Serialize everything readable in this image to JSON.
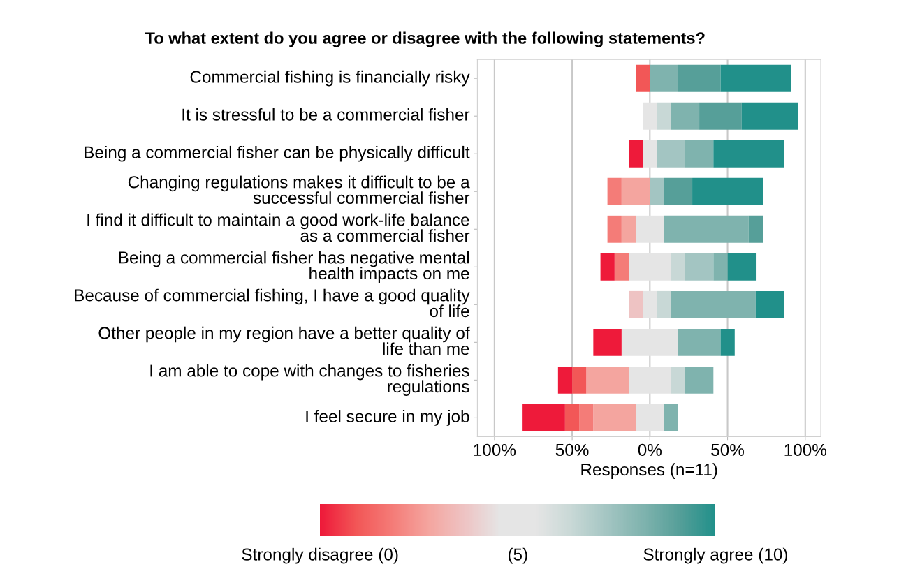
{
  "chart_data": {
    "type": "bar",
    "orientation": "horizontal",
    "stacked": true,
    "title": "To what extent do you agree or disagree with the following statements?",
    "categories": [
      "Commercial fishing is financially risky",
      "It is stressful to be a commercial fisher",
      "Being a commercial fisher can be physically difficult",
      "Changing regulations makes it difficult to be a successful commercial fisher",
      "I find it difficult to maintain a good work-life balance as a commercial fisher",
      "Being a commercial fisher has negative mental health impacts on me",
      "Because of commercial fishing, I have a good quality of life",
      "Other people in my region have a better quality of life than me",
      "I am able to cope with changes to fisheries regulations",
      "I feel secure in my job"
    ],
    "series": [
      {
        "color": "#e5e5e5",
        "values": [
          null,
          -4.5,
          -4.5,
          null,
          -9.1,
          -13.6,
          -4.5,
          -18.2,
          -13.6,
          -9.1
        ]
      },
      {
        "color": "#eec3c3",
        "values": [
          null,
          null,
          null,
          null,
          null,
          null,
          -9.1,
          null,
          null,
          null
        ]
      },
      {
        "color": "#f4a59f",
        "values": [
          null,
          null,
          null,
          -18.2,
          -9.1,
          null,
          null,
          null,
          -27.3,
          -27.3
        ]
      },
      {
        "color": "#f47c78",
        "values": [
          null,
          null,
          null,
          -9.1,
          -9.1,
          -9.1,
          null,
          null,
          null,
          -9.1
        ]
      },
      {
        "color": "#f25757",
        "values": [
          -9.1,
          null,
          null,
          null,
          null,
          null,
          null,
          null,
          -9.1,
          -9.1
        ]
      },
      {
        "color": "#ee1a3a",
        "values": [
          null,
          null,
          -9.1,
          null,
          null,
          -9.1,
          null,
          -18.2,
          -9.1,
          -27.3
        ]
      },
      {
        "color": "#e5e5e5",
        "values": [
          null,
          4.5,
          4.5,
          null,
          9.1,
          13.6,
          4.5,
          18.2,
          13.6,
          9.1
        ]
      },
      {
        "color": "#c8d8d6",
        "values": [
          null,
          9.1,
          null,
          null,
          null,
          9.1,
          9.1,
          null,
          9.1,
          null
        ]
      },
      {
        "color": "#a3c5c2",
        "values": [
          null,
          null,
          18.2,
          9.1,
          null,
          18.2,
          null,
          null,
          null,
          null
        ]
      },
      {
        "color": "#7fb3ae",
        "values": [
          18.2,
          18.2,
          18.2,
          null,
          54.5,
          9.1,
          54.5,
          27.3,
          18.2,
          9.1
        ]
      },
      {
        "color": "#569f99",
        "values": [
          27.3,
          27.3,
          null,
          18.2,
          9.1,
          null,
          null,
          null,
          null,
          null
        ]
      },
      {
        "color": "#21908a",
        "values": [
          45.5,
          36.4,
          45.5,
          45.5,
          null,
          18.2,
          18.2,
          9.1,
          null,
          null
        ]
      }
    ],
    "xlim": [
      -111,
      110
    ],
    "xticks": [
      {
        "value": -100,
        "label": "100%"
      },
      {
        "value": -50,
        "label": "50%"
      },
      {
        "value": 0,
        "label": "0%"
      },
      {
        "value": 50,
        "label": "50%"
      },
      {
        "value": 100,
        "label": "100%"
      }
    ],
    "xlabel": "Responses (n=11)",
    "grid": "x",
    "legend": false,
    "clim": [
      0,
      10
    ],
    "cticks": [
      {
        "value": 0,
        "label": "Strongly disagree (0)"
      },
      {
        "value": 5,
        "label": "(5)"
      },
      {
        "value": 10,
        "label": "Strongly agree (10)"
      }
    ]
  }
}
